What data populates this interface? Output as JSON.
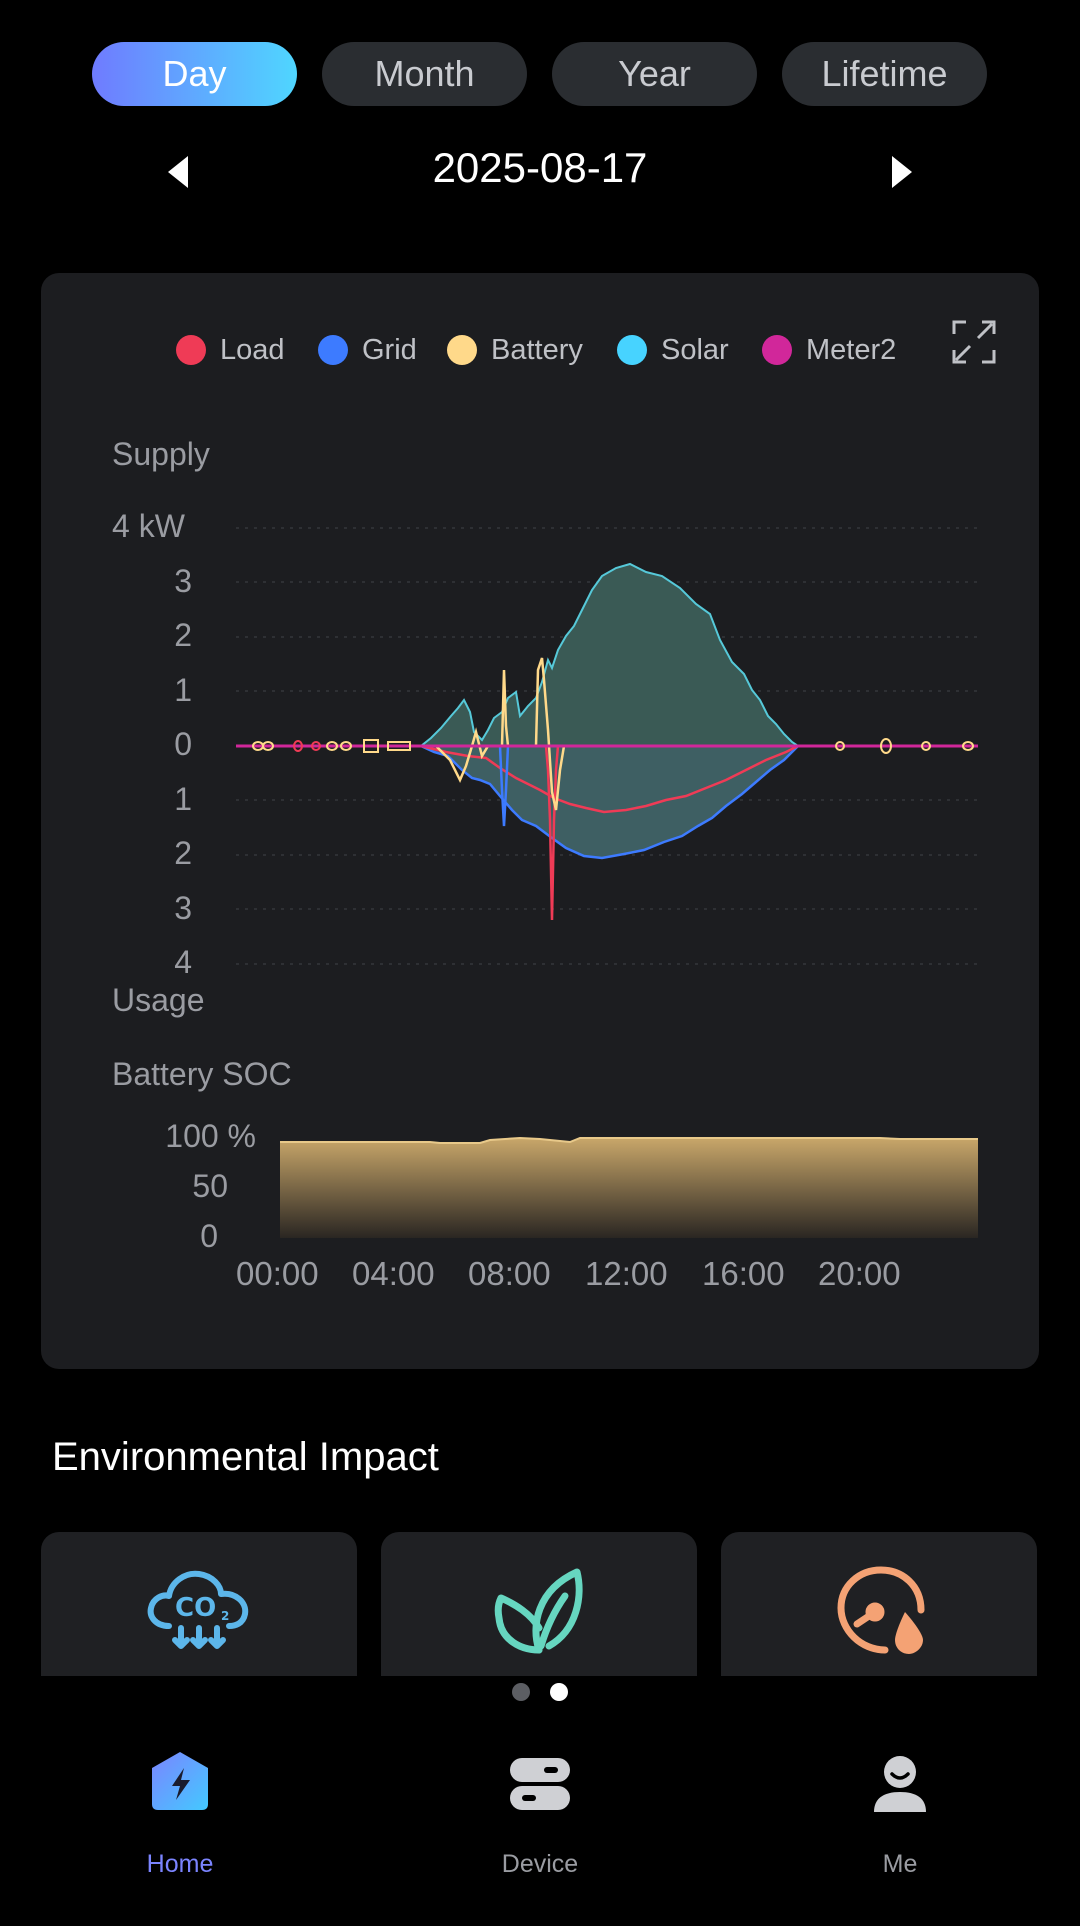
{
  "tabs": [
    {
      "label": "Day",
      "active": true
    },
    {
      "label": "Month",
      "active": false
    },
    {
      "label": "Year",
      "active": false
    },
    {
      "label": "Lifetime",
      "active": false
    }
  ],
  "date": "2025-08-17",
  "legend": [
    {
      "name": "Load",
      "color": "#ef3b56"
    },
    {
      "name": "Grid",
      "color": "#3d7bff"
    },
    {
      "name": "Battery",
      "color": "#ffd98a"
    },
    {
      "name": "Solar",
      "color": "#47d3ff"
    },
    {
      "name": "Meter2",
      "color": "#d1279a"
    }
  ],
  "power_chart": {
    "supply_label": "Supply",
    "usage_label": "Usage",
    "y_ticks": [
      "4 kW",
      "3",
      "2",
      "1",
      "0",
      "1",
      "2",
      "3",
      "4"
    ]
  },
  "soc_chart": {
    "title": "Battery SOC",
    "y_ticks": [
      "100 %",
      "50",
      "0"
    ],
    "x_ticks": [
      "00:00",
      "04:00",
      "08:00",
      "12:00",
      "16:00",
      "20:00"
    ]
  },
  "chart_data": [
    {
      "type": "area",
      "series": [
        {
          "name": "Solar",
          "x": [
            "06:00",
            "07:00",
            "08:00",
            "09:00",
            "10:00",
            "11:00",
            "12:00",
            "13:00",
            "14:00",
            "15:00",
            "16:00",
            "17:00",
            "18:00",
            "19:00"
          ],
          "values": [
            0.2,
            0.8,
            0.9,
            1.2,
            1.6,
            2.8,
            3.1,
            3.2,
            3.0,
            2.6,
            1.9,
            1.2,
            0.5,
            0.1
          ]
        },
        {
          "name": "Load",
          "x": [
            "06:00",
            "07:00",
            "08:00",
            "09:00",
            "10:00",
            "11:00",
            "12:00",
            "13:00",
            "14:00",
            "15:00",
            "16:00",
            "17:00",
            "18:00",
            "19:00"
          ],
          "values": [
            -0.2,
            -0.6,
            -0.8,
            -0.9,
            -3.2,
            -1.2,
            -1.3,
            -1.2,
            -1.1,
            -0.9,
            -0.7,
            -0.5,
            -0.3,
            -0.1
          ]
        },
        {
          "name": "Grid",
          "x": [
            "06:00",
            "07:00",
            "08:00",
            "09:00",
            "10:00",
            "11:00",
            "12:00",
            "13:00",
            "14:00",
            "15:00",
            "16:00",
            "17:00",
            "18:00",
            "19:00"
          ],
          "values": [
            -0.1,
            -0.8,
            -1.5,
            -1.3,
            -1.5,
            -1.9,
            -2.0,
            -1.9,
            -1.7,
            -1.4,
            -1.0,
            -0.6,
            -0.3,
            0
          ]
        },
        {
          "name": "Battery",
          "x": [
            "06:00",
            "07:00",
            "08:00",
            "09:00",
            "10:00",
            "11:00"
          ],
          "values": [
            -0.8,
            1.4,
            -0.5,
            1.6,
            -1.6,
            0
          ]
        }
      ],
      "ylim": [
        -4,
        4
      ],
      "y_unit": "kW"
    },
    {
      "type": "area",
      "title": "Battery SOC",
      "x": [
        "00:00",
        "04:00",
        "08:00",
        "12:00",
        "16:00",
        "20:00",
        "24:00"
      ],
      "values": [
        97,
        96,
        99,
        100,
        100,
        100,
        99
      ],
      "ylim": [
        0,
        100
      ],
      "y_unit": "%"
    }
  ],
  "env": {
    "title": "Environmental Impact",
    "cards": [
      {
        "icon": "co2-cloud-icon",
        "color": "#5cb6ea"
      },
      {
        "icon": "leaf-icon",
        "color": "#66d6c0"
      },
      {
        "icon": "gauge-drop-icon",
        "color": "#f4a274"
      }
    ],
    "page_dots": 2,
    "active_dot": 1
  },
  "nav": [
    {
      "label": "Home",
      "icon": "home-bolt-icon",
      "active": true
    },
    {
      "label": "Device",
      "icon": "device-icon",
      "active": false
    },
    {
      "label": "Me",
      "icon": "user-icon",
      "active": false
    }
  ],
  "colors": {
    "accent": "#6f7bff",
    "card_bg": "#1c1d20",
    "soc_fill": "#c9a76a"
  }
}
